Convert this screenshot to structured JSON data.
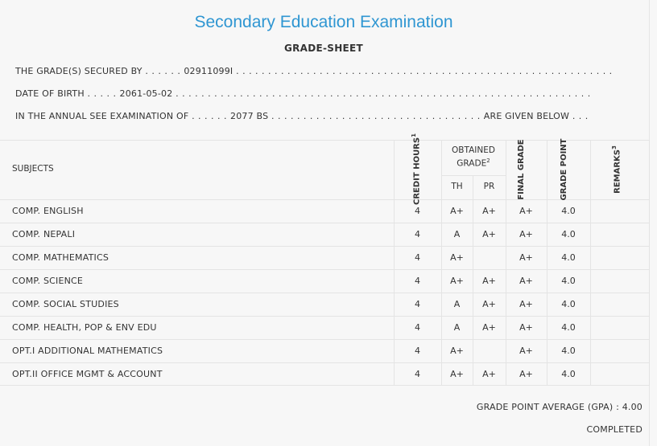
{
  "header": {
    "title": "Secondary Education Examination",
    "subtitle": "GRADE-SHEET"
  },
  "student": {
    "secured_by_label": "THE GRADE(S) SECURED BY",
    "symbol_no": "02911099I",
    "dob_label": "DATE OF BIRTH",
    "dob": "2061-05-02",
    "exam_label": "IN THE ANNUAL SEE EXAMINATION OF",
    "exam_year": "2077 BS",
    "given_below": "ARE GIVEN BELOW"
  },
  "table": {
    "headers": {
      "subjects": "SUBJECTS",
      "credit_hours": "CREDIT HOURS",
      "credit_sup": "1",
      "obtained_grade": "OBTAINED GRADE",
      "obtained_sup": "2",
      "th": "TH",
      "pr": "PR",
      "final_grade": "FINAL GRADE",
      "grade_point": "GRADE POINT",
      "remarks": "REMARKS",
      "remarks_sup": "3"
    },
    "rows": [
      {
        "subject": "COMP. ENGLISH",
        "credit": "4",
        "th": "A+",
        "pr": "A+",
        "final": "A+",
        "gp": "4.0"
      },
      {
        "subject": "COMP. NEPALI",
        "credit": "4",
        "th": "A",
        "pr": "A+",
        "final": "A+",
        "gp": "4.0"
      },
      {
        "subject": "COMP. MATHEMATICS",
        "credit": "4",
        "th": "A+",
        "pr": "",
        "final": "A+",
        "gp": "4.0"
      },
      {
        "subject": "COMP. SCIENCE",
        "credit": "4",
        "th": "A+",
        "pr": "A+",
        "final": "A+",
        "gp": "4.0"
      },
      {
        "subject": "COMP. SOCIAL STUDIES",
        "credit": "4",
        "th": "A",
        "pr": "A+",
        "final": "A+",
        "gp": "4.0"
      },
      {
        "subject": "COMP. HEALTH, POP & ENV EDU",
        "credit": "4",
        "th": "A",
        "pr": "A+",
        "final": "A+",
        "gp": "4.0"
      },
      {
        "subject": "OPT.I ADDITIONAL MATHEMATICS",
        "credit": "4",
        "th": "A+",
        "pr": "",
        "final": "A+",
        "gp": "4.0"
      },
      {
        "subject": "OPT.II OFFICE MGMT & ACCOUNT",
        "credit": "4",
        "th": "A+",
        "pr": "A+",
        "final": "A+",
        "gp": "4.0"
      }
    ]
  },
  "footer": {
    "gpa_label": "GRADE POINT AVERAGE (GPA) :",
    "gpa_value": "4.00",
    "status": "COMPLETED"
  }
}
